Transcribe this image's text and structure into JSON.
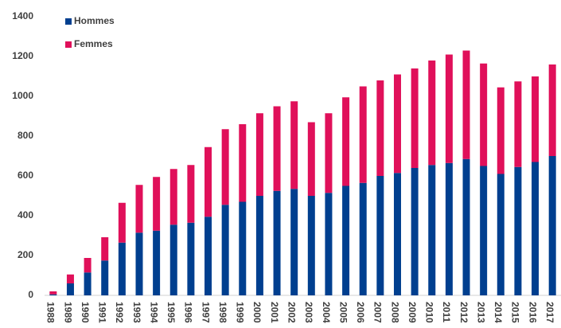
{
  "chart_data": {
    "type": "stacked-bar",
    "categories": [
      "1988",
      "1989",
      "1990",
      "1991",
      "1992",
      "1993",
      "1994",
      "1995",
      "1996",
      "1997",
      "1998",
      "1999",
      "2000",
      "2001",
      "2002",
      "2003",
      "2004",
      "2005",
      "2006",
      "2007",
      "2008",
      "2009",
      "2010",
      "2011",
      "2012",
      "2013",
      "2014",
      "2015",
      "2016",
      "2017"
    ],
    "series": [
      {
        "name": "Hommes",
        "color": "#003f8f",
        "values": [
          5,
          60,
          115,
          175,
          265,
          315,
          325,
          355,
          365,
          395,
          455,
          470,
          500,
          525,
          535,
          500,
          515,
          550,
          565,
          600,
          615,
          640,
          655,
          665,
          685,
          650,
          610,
          645,
          670,
          700
        ]
      },
      {
        "name": "Femmes",
        "color": "#e0105a",
        "values": [
          15,
          45,
          73,
          117,
          200,
          240,
          270,
          280,
          290,
          350,
          380,
          390,
          415,
          425,
          440,
          370,
          400,
          445,
          485,
          480,
          495,
          500,
          525,
          545,
          545,
          515,
          435,
          430,
          430,
          460
        ]
      }
    ],
    "ylim": [
      0,
      1400
    ],
    "yticks": [
      0,
      200,
      400,
      600,
      800,
      1000,
      1200,
      1400
    ],
    "grid": false,
    "legend": "top-left"
  }
}
